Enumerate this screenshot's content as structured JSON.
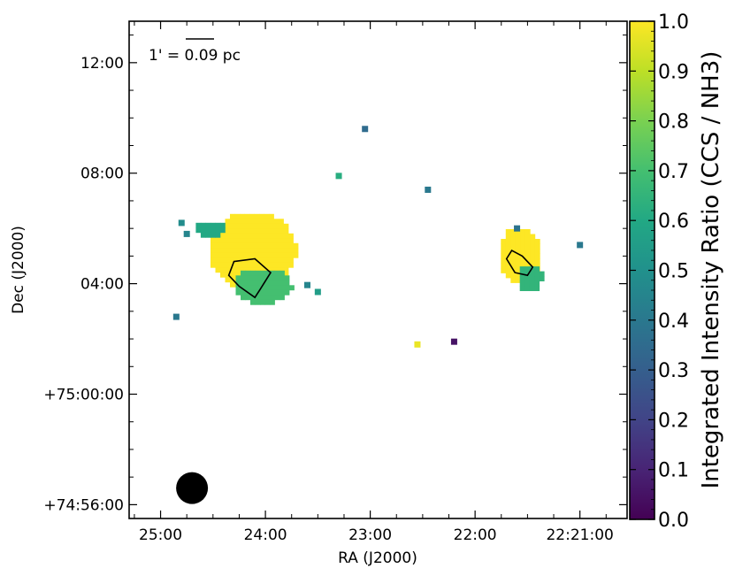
{
  "chart_data": {
    "type": "heatmap",
    "title": "",
    "xlabel": "RA (J2000)",
    "ylabel": "Dec (J2000)",
    "x_ticks": [
      {
        "label": "25:00",
        "value": 25.0
      },
      {
        "label": "24:00",
        "value": 24.0
      },
      {
        "label": "23:00",
        "value": 23.0
      },
      {
        "label": "22:00",
        "value": 22.0
      },
      {
        "label": "22:21:00",
        "value": 21.0
      }
    ],
    "y_ticks": [
      {
        "label": "12:00",
        "value": 12
      },
      {
        "label": "08:00",
        "value": 8
      },
      {
        "label": "04:00",
        "value": 4
      },
      {
        "label": "+75:00:00",
        "value": 0
      },
      {
        "label": "+74:56:00",
        "value": -4
      }
    ],
    "xlim": [
      25.3,
      20.55
    ],
    "ylim": [
      -4.5,
      13.5
    ],
    "grid": false,
    "scale_bar": {
      "label": "1' = 0.09 pc"
    },
    "beam": {
      "ra": 24.7,
      "dec": -3.4
    },
    "colorbar": {
      "label": "Integrated Intensity Ratio (CCS / NH3)",
      "colormap": "viridis",
      "range": [
        0.0,
        1.0
      ],
      "tick_labels": [
        "0.0",
        "0.1",
        "0.2",
        "0.3",
        "0.4",
        "0.5",
        "0.6",
        "0.7",
        "0.8",
        "0.9",
        "1.0"
      ]
    },
    "regions": [
      {
        "ra": 24.15,
        "dec": 5.3,
        "rx": 0.42,
        "ry": 1.4,
        "value": 1.0
      },
      {
        "ra": 24.05,
        "dec": 4.0,
        "rx": 0.28,
        "ry": 0.65,
        "value": 0.7
      },
      {
        "ra": 24.55,
        "dec": 6.1,
        "rx": 0.16,
        "ry": 0.28,
        "value": 0.6
      },
      {
        "ra": 21.6,
        "dec": 5.1,
        "rx": 0.2,
        "ry": 1.05,
        "value": 1.0
      },
      {
        "ra": 21.5,
        "dec": 4.3,
        "rx": 0.12,
        "ry": 0.5,
        "value": 0.65
      }
    ],
    "pixels": [
      {
        "ra": 24.8,
        "dec": 6.2,
        "value": 0.48
      },
      {
        "ra": 24.75,
        "dec": 5.8,
        "value": 0.45
      },
      {
        "ra": 23.6,
        "dec": 3.95,
        "value": 0.45
      },
      {
        "ra": 23.5,
        "dec": 3.7,
        "value": 0.55
      },
      {
        "ra": 23.3,
        "dec": 7.9,
        "value": 0.62
      },
      {
        "ra": 23.05,
        "dec": 9.6,
        "value": 0.35
      },
      {
        "ra": 22.45,
        "dec": 7.4,
        "value": 0.4
      },
      {
        "ra": 22.55,
        "dec": 1.8,
        "value": 0.97
      },
      {
        "ra": 22.2,
        "dec": 1.9,
        "value": 0.05
      },
      {
        "ra": 21.6,
        "dec": 6.0,
        "value": 0.38
      },
      {
        "ra": 21.0,
        "dec": 5.4,
        "value": 0.4
      },
      {
        "ra": 24.85,
        "dec": 2.8,
        "value": 0.4
      }
    ],
    "nh3_contours": [
      {
        "points": [
          [
            24.3,
            4.8
          ],
          [
            24.1,
            4.9
          ],
          [
            23.95,
            4.4
          ],
          [
            24.05,
            3.8
          ],
          [
            24.1,
            3.5
          ],
          [
            24.25,
            3.9
          ],
          [
            24.35,
            4.3
          ]
        ]
      },
      {
        "points": [
          [
            21.65,
            5.2
          ],
          [
            21.55,
            5.0
          ],
          [
            21.45,
            4.6
          ],
          [
            21.5,
            4.3
          ],
          [
            21.62,
            4.4
          ],
          [
            21.7,
            4.9
          ]
        ]
      }
    ]
  }
}
